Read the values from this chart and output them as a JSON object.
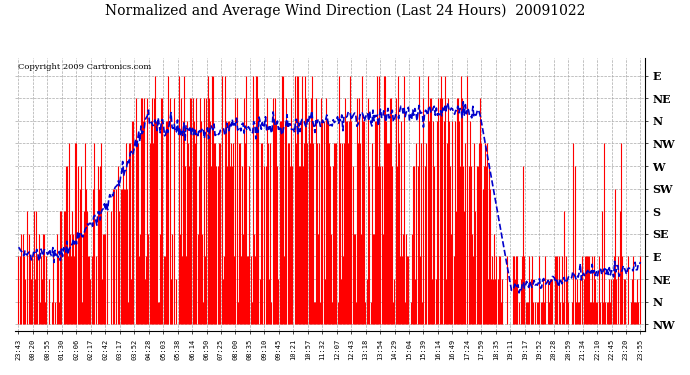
{
  "title": "Normalized and Average Wind Direction (Last 24 Hours)  20091022",
  "copyright": "Copyright 2009 Cartronics.com",
  "background_color": "#ffffff",
  "plot_bg_color": "#ffffff",
  "grid_color": "#aaaaaa",
  "bar_color": "#ff0000",
  "line_color": "#0000cc",
  "ytick_labels": [
    "E",
    "NE",
    "N",
    "NW",
    "W",
    "SW",
    "S",
    "SE",
    "E",
    "NE",
    "N",
    "NW"
  ],
  "ytick_values": [
    11,
    10,
    9,
    8,
    7,
    6,
    5,
    4,
    3,
    2,
    1,
    0
  ],
  "ylim": [
    -0.3,
    11.8
  ],
  "xtick_labels": [
    "23:43",
    "00:20",
    "00:55",
    "01:30",
    "02:06",
    "02:17",
    "02:42",
    "03:17",
    "03:52",
    "04:28",
    "05:03",
    "05:38",
    "06:14",
    "06:50",
    "07:25",
    "08:00",
    "08:35",
    "09:10",
    "09:45",
    "10:21",
    "10:57",
    "11:32",
    "12:07",
    "12:43",
    "13:18",
    "13:54",
    "14:29",
    "15:04",
    "15:39",
    "16:14",
    "16:49",
    "17:24",
    "17:59",
    "18:35",
    "19:11",
    "19:17",
    "19:52",
    "20:28",
    "20:59",
    "21:34",
    "22:10",
    "22:45",
    "23:20",
    "23:55"
  ],
  "figsize": [
    6.9,
    3.75
  ],
  "dpi": 100,
  "title_fontsize": 10,
  "copyright_fontsize": 6,
  "ytick_fontsize": 8,
  "xtick_fontsize": 5
}
